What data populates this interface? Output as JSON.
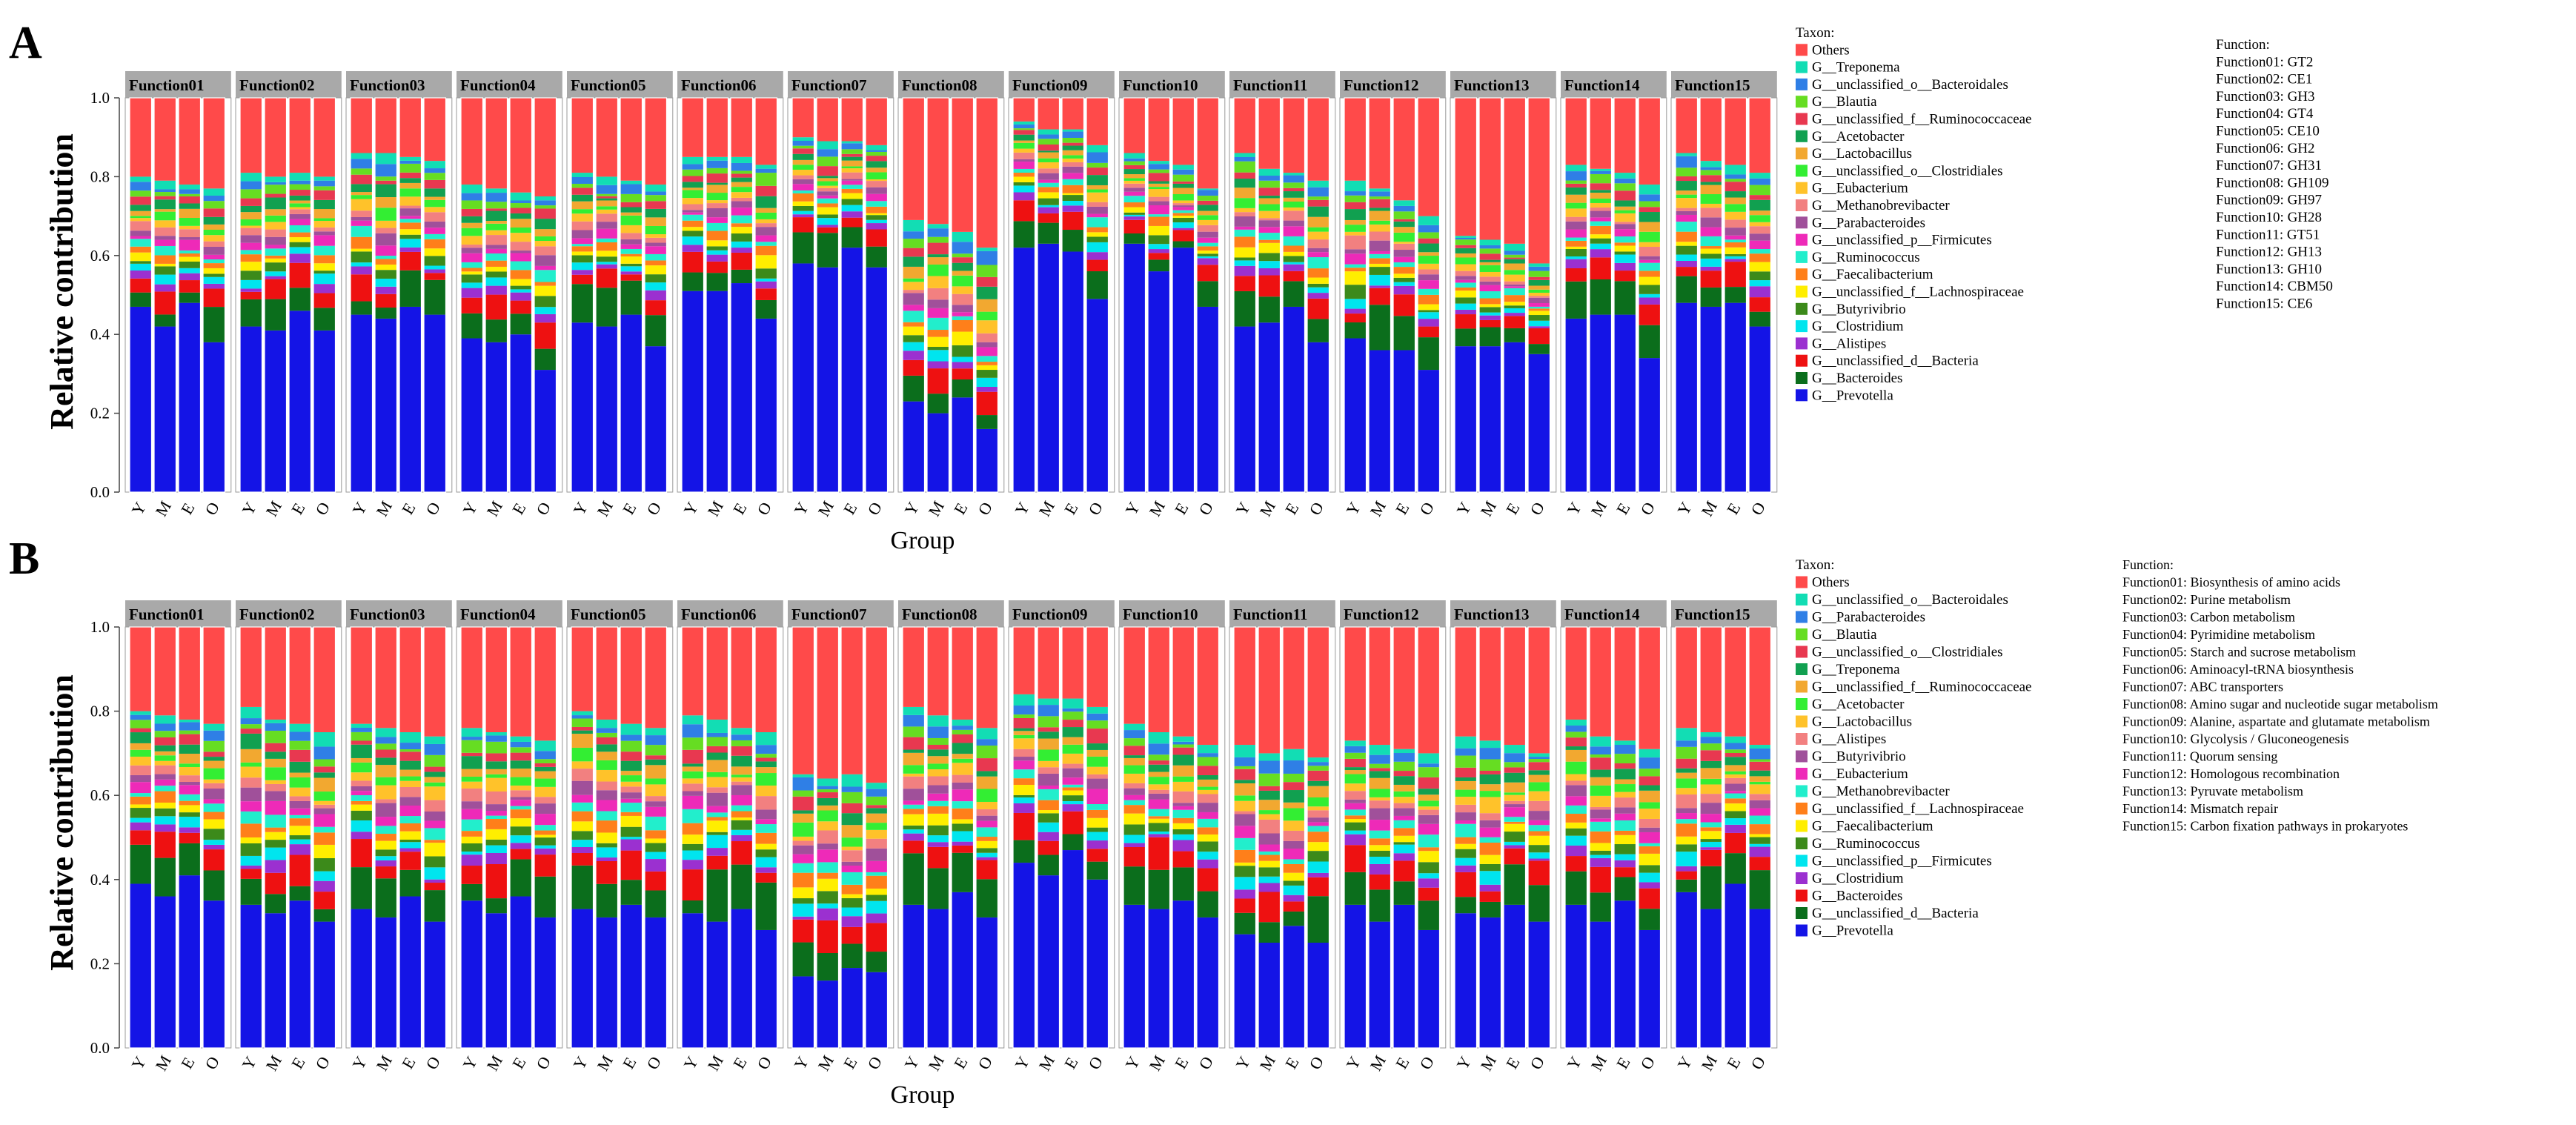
{
  "chart_data": [
    {
      "panel_label": "A",
      "type": "stacked-bar",
      "ylabel": "Relative contribution",
      "xlabel": "Group",
      "ylim": [
        0,
        1
      ],
      "yticks": [
        "0.0",
        "0.2",
        "0.4",
        "0.6",
        "0.8",
        "1.0"
      ],
      "groups": [
        "Y",
        "M",
        "E",
        "O"
      ],
      "facets": [
        "Function01",
        "Function02",
        "Function03",
        "Function04",
        "Function05",
        "Function06",
        "Function07",
        "Function08",
        "Function09",
        "Function10",
        "Function11",
        "Function12",
        "Function13",
        "Function14",
        "Function15"
      ],
      "legend_title": "Taxon:",
      "legend": [
        {
          "name": "Others",
          "color": "#ff4a4a"
        },
        {
          "name": "G__Treponema",
          "color": "#12ddb4"
        },
        {
          "name": "G__unclassified_o__Bacteroidales",
          "color": "#2f7fe6"
        },
        {
          "name": "G__Blautia",
          "color": "#66dd22"
        },
        {
          "name": "G__unclassified_f__Ruminococcaceae",
          "color": "#e83850"
        },
        {
          "name": "G__Acetobacter",
          "color": "#11a050"
        },
        {
          "name": "G__Lactobacillus",
          "color": "#f2a830"
        },
        {
          "name": "G__unclassified_o__Clostridiales",
          "color": "#33ee33"
        },
        {
          "name": "G__Eubacterium",
          "color": "#ffc22a"
        },
        {
          "name": "G__Methanobrevibacter",
          "color": "#f28080"
        },
        {
          "name": "G__Parabacteroides",
          "color": "#a0509a"
        },
        {
          "name": "G__unclassified_p__Firmicutes",
          "color": "#ee2ab8"
        },
        {
          "name": "G__Ruminococcus",
          "color": "#22eecc"
        },
        {
          "name": "G__Faecalibacterium",
          "color": "#ff7f1a"
        },
        {
          "name": "G__unclassified_f__Lachnospiraceae",
          "color": "#ffee00"
        },
        {
          "name": "G__Butyrivibrio",
          "color": "#3c8a1a"
        },
        {
          "name": "G__Clostridium",
          "color": "#00e5ee"
        },
        {
          "name": "G__Alistipes",
          "color": "#9b30d0"
        },
        {
          "name": "G__unclassified_d__Bacteria",
          "color": "#ee1111"
        },
        {
          "name": "G__Bacteroides",
          "color": "#0b6e1c"
        },
        {
          "name": "G__Prevotella",
          "color": "#1414e6"
        }
      ],
      "function_title": "Function:",
      "function_map": [
        "Function01: GT2",
        "Function02: CE1",
        "Function03: GH3",
        "Function04: GT4",
        "Function05: CE10",
        "Function06: GH2",
        "Function07: GH31",
        "Function08: GH109",
        "Function09: GH97",
        "Function10: GH28",
        "Function11: GT51",
        "Function12: GH13",
        "Function13: GH10",
        "Function14: CBM50",
        "Function15: CE6"
      ],
      "prevotella": [
        [
          0.47,
          0.42,
          0.48,
          0.38
        ],
        [
          0.42,
          0.41,
          0.46,
          0.41
        ],
        [
          0.45,
          0.44,
          0.47,
          0.45
        ],
        [
          0.39,
          0.38,
          0.4,
          0.31
        ],
        [
          0.43,
          0.42,
          0.45,
          0.37
        ],
        [
          0.51,
          0.51,
          0.53,
          0.44
        ],
        [
          0.58,
          0.57,
          0.62,
          0.57
        ],
        [
          0.23,
          0.2,
          0.24,
          0.16
        ],
        [
          0.62,
          0.63,
          0.61,
          0.49
        ],
        [
          0.63,
          0.56,
          0.62,
          0.47
        ],
        [
          0.42,
          0.43,
          0.47,
          0.38
        ],
        [
          0.39,
          0.36,
          0.36,
          0.31
        ],
        [
          0.37,
          0.37,
          0.38,
          0.35
        ],
        [
          0.44,
          0.45,
          0.45,
          0.34
        ],
        [
          0.48,
          0.47,
          0.48,
          0.42
        ]
      ],
      "others": [
        [
          0.2,
          0.21,
          0.22,
          0.23
        ],
        [
          0.19,
          0.2,
          0.19,
          0.2
        ],
        [
          0.14,
          0.14,
          0.15,
          0.16
        ],
        [
          0.22,
          0.23,
          0.24,
          0.25
        ],
        [
          0.19,
          0.2,
          0.21,
          0.22
        ],
        [
          0.15,
          0.15,
          0.15,
          0.17
        ],
        [
          0.1,
          0.11,
          0.11,
          0.12
        ],
        [
          0.31,
          0.32,
          0.34,
          0.38
        ],
        [
          0.06,
          0.08,
          0.08,
          0.12
        ],
        [
          0.14,
          0.16,
          0.17,
          0.23
        ],
        [
          0.14,
          0.18,
          0.19,
          0.21
        ],
        [
          0.21,
          0.23,
          0.26,
          0.3
        ],
        [
          0.35,
          0.36,
          0.37,
          0.42
        ],
        [
          0.17,
          0.18,
          0.19,
          0.22
        ],
        [
          0.14,
          0.16,
          0.17,
          0.19
        ]
      ]
    },
    {
      "panel_label": "B",
      "type": "stacked-bar",
      "ylabel": "Relative contribution",
      "xlabel": "Group",
      "ylim": [
        0,
        1
      ],
      "yticks": [
        "0.0",
        "0.2",
        "0.4",
        "0.6",
        "0.8",
        "1.0"
      ],
      "groups": [
        "Y",
        "M",
        "E",
        "O"
      ],
      "facets": [
        "Function01",
        "Function02",
        "Function03",
        "Function04",
        "Function05",
        "Function06",
        "Function07",
        "Function08",
        "Function09",
        "Function10",
        "Function11",
        "Function12",
        "Function13",
        "Function14",
        "Function15"
      ],
      "legend_title": "Taxon:",
      "legend": [
        {
          "name": "Others",
          "color": "#ff4a4a"
        },
        {
          "name": "G__unclassified_o__Bacteroidales",
          "color": "#12ddb4"
        },
        {
          "name": "G__Parabacteroides",
          "color": "#2f7fe6"
        },
        {
          "name": "G__Blautia",
          "color": "#66dd22"
        },
        {
          "name": "G__unclassified_o__Clostridiales",
          "color": "#e83850"
        },
        {
          "name": "G__Treponema",
          "color": "#11a050"
        },
        {
          "name": "G__unclassified_f__Ruminococcaceae",
          "color": "#f2a830"
        },
        {
          "name": "G__Acetobacter",
          "color": "#33ee33"
        },
        {
          "name": "G__Lactobacillus",
          "color": "#ffc22a"
        },
        {
          "name": "G__Alistipes",
          "color": "#f28080"
        },
        {
          "name": "G__Butyrivibrio",
          "color": "#a0509a"
        },
        {
          "name": "G__Eubacterium",
          "color": "#ee2ab8"
        },
        {
          "name": "G__Methanobrevibacter",
          "color": "#22eecc"
        },
        {
          "name": "G__unclassified_f__Lachnospiraceae",
          "color": "#ff7f1a"
        },
        {
          "name": "G__Faecalibacterium",
          "color": "#ffee00"
        },
        {
          "name": "G__Ruminococcus",
          "color": "#3c8a1a"
        },
        {
          "name": "G__unclassified_p__Firmicutes",
          "color": "#00e5ee"
        },
        {
          "name": "G__Clostridium",
          "color": "#9b30d0"
        },
        {
          "name": "G__Bacteroides",
          "color": "#ee1111"
        },
        {
          "name": "G__unclassified_d__Bacteria",
          "color": "#0b6e1c"
        },
        {
          "name": "G__Prevotella",
          "color": "#1414e6"
        }
      ],
      "function_title": "Function:",
      "function_map": [
        "Function01: Biosynthesis of amino acids",
        "Function02: Purine metabolism",
        "Function03: Carbon metabolism",
        "Function04: Pyrimidine metabolism",
        "Function05: Starch and sucrose metabolism",
        "Function06: Aminoacyl-tRNA biosynthesis",
        "Function07: ABC transporters",
        "Function08: Amino sugar and nucleotide sugar metabolism",
        "Function09: Alanine, aspartate and glutamate metabolism",
        "Function10: Glycolysis / Gluconeogenesis",
        "Function11: Quorum sensing",
        "Function12: Homologous recombination",
        "Function13: Pyruvate metabolism",
        "Function14: Mismatch repair",
        "Function15: Carbon fixation pathways in prokaryotes"
      ],
      "prevotella": [
        [
          0.39,
          0.36,
          0.41,
          0.35
        ],
        [
          0.34,
          0.32,
          0.35,
          0.3
        ],
        [
          0.33,
          0.31,
          0.36,
          0.3
        ],
        [
          0.35,
          0.32,
          0.36,
          0.31
        ],
        [
          0.33,
          0.31,
          0.34,
          0.31
        ],
        [
          0.32,
          0.3,
          0.33,
          0.28
        ],
        [
          0.17,
          0.16,
          0.19,
          0.18
        ],
        [
          0.34,
          0.33,
          0.37,
          0.31
        ],
        [
          0.44,
          0.41,
          0.47,
          0.4
        ],
        [
          0.34,
          0.33,
          0.35,
          0.31
        ],
        [
          0.27,
          0.25,
          0.29,
          0.25
        ],
        [
          0.34,
          0.3,
          0.34,
          0.28
        ],
        [
          0.32,
          0.31,
          0.34,
          0.3
        ],
        [
          0.34,
          0.3,
          0.35,
          0.28
        ],
        [
          0.37,
          0.33,
          0.39,
          0.33
        ]
      ],
      "others": [
        [
          0.2,
          0.21,
          0.22,
          0.23
        ],
        [
          0.19,
          0.22,
          0.23,
          0.25
        ],
        [
          0.23,
          0.24,
          0.25,
          0.26
        ],
        [
          0.24,
          0.25,
          0.26,
          0.27
        ],
        [
          0.2,
          0.22,
          0.23,
          0.24
        ],
        [
          0.21,
          0.22,
          0.24,
          0.25
        ],
        [
          0.35,
          0.36,
          0.35,
          0.37
        ],
        [
          0.19,
          0.21,
          0.22,
          0.24
        ],
        [
          0.16,
          0.17,
          0.17,
          0.19
        ],
        [
          0.23,
          0.25,
          0.26,
          0.28
        ],
        [
          0.28,
          0.3,
          0.29,
          0.31
        ],
        [
          0.27,
          0.28,
          0.29,
          0.3
        ],
        [
          0.26,
          0.27,
          0.28,
          0.3
        ],
        [
          0.22,
          0.26,
          0.27,
          0.29
        ],
        [
          0.24,
          0.25,
          0.26,
          0.28
        ]
      ]
    }
  ]
}
